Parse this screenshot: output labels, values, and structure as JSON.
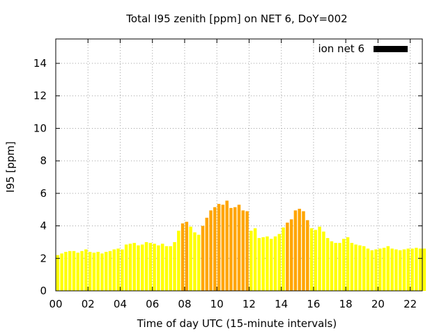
{
  "chart_data": {
    "type": "bar",
    "title": "Total I95 zenith [ppm] on NET 6, DoY=002",
    "xlabel": "Time of day UTC (15-minute intervals)",
    "ylabel": "I95 [ppm]",
    "xlim": [
      0,
      22.75
    ],
    "ylim": [
      0,
      15.5
    ],
    "x_ticks": [
      "00",
      "02",
      "04",
      "06",
      "08",
      "10",
      "12",
      "14",
      "16",
      "18",
      "20",
      "22"
    ],
    "x_tick_values": [
      0,
      2,
      4,
      6,
      8,
      10,
      12,
      14,
      16,
      18,
      20,
      22
    ],
    "y_ticks": [
      "0",
      "2",
      "4",
      "6",
      "8",
      "10",
      "12",
      "14"
    ],
    "y_tick_values": [
      0,
      2,
      4,
      6,
      8,
      10,
      12,
      14
    ],
    "grid": true,
    "legend": {
      "label": "ion net 6",
      "position": "top-right",
      "color": "#000000"
    },
    "interval_hours": 0.25,
    "values": [
      2.2,
      2.3,
      2.4,
      2.45,
      2.45,
      2.35,
      2.45,
      2.55,
      2.4,
      2.35,
      2.4,
      2.3,
      2.4,
      2.45,
      2.55,
      2.6,
      2.55,
      2.85,
      2.9,
      2.95,
      2.8,
      2.85,
      3.0,
      2.95,
      2.9,
      2.8,
      2.9,
      2.75,
      2.75,
      3.0,
      3.7,
      4.15,
      4.25,
      3.95,
      3.6,
      3.45,
      4.0,
      4.5,
      4.95,
      5.15,
      5.35,
      5.3,
      5.55,
      5.1,
      5.15,
      5.3,
      4.95,
      4.9,
      3.7,
      3.85,
      3.25,
      3.3,
      3.35,
      3.2,
      3.35,
      3.5,
      3.9,
      4.2,
      4.4,
      4.95,
      5.05,
      4.9,
      4.35,
      3.85,
      3.75,
      3.95,
      3.65,
      3.25,
      3.05,
      2.95,
      2.95,
      3.2,
      3.3,
      2.95,
      2.85,
      2.8,
      2.75,
      2.6,
      2.5,
      2.55,
      2.6,
      2.65,
      2.75,
      2.6,
      2.55,
      2.5,
      2.55,
      2.6,
      2.6,
      2.65,
      2.6,
      2.6
    ],
    "colors": {
      "normal": "#ffff00",
      "elevated": "#ffa500",
      "threshold": 4.0
    }
  }
}
